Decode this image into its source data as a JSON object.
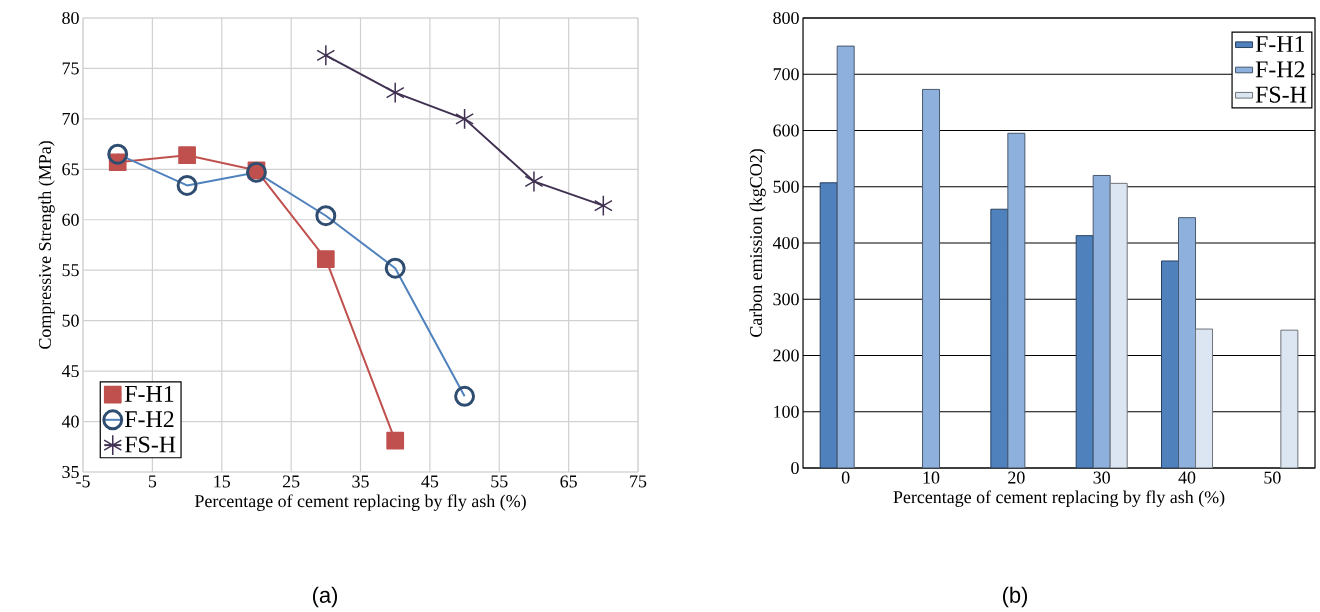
{
  "chart_data": [
    {
      "type": "line",
      "xlabel": "Percentage of cement replacing by fly ash (%)",
      "ylabel": "Compressive Strength (MPa)",
      "xlim": [
        -5,
        75
      ],
      "xticks": [
        -5,
        5,
        15,
        25,
        35,
        45,
        55,
        65,
        75
      ],
      "ylim": [
        35,
        80
      ],
      "yticks": [
        35,
        40,
        45,
        50,
        55,
        60,
        65,
        70,
        75,
        80
      ],
      "grid": true,
      "legend": "bottom left",
      "annotations": [
        "(a)"
      ],
      "series": [
        {
          "name": "F-H1",
          "color": "#c0504d",
          "marker": "square",
          "x": [
            0,
            10,
            20,
            30,
            40
          ],
          "values": [
            65.7,
            66.4,
            64.9,
            56.1,
            38.1
          ]
        },
        {
          "name": "F-H2",
          "color": "#4f81bd",
          "marker": "circle",
          "x": [
            0,
            10,
            20,
            30,
            40,
            50
          ],
          "values": [
            66.5,
            63.4,
            64.7,
            60.4,
            55.2,
            42.5
          ]
        },
        {
          "name": "FS-H",
          "color": "#403152",
          "marker": "cross",
          "x": [
            30,
            40,
            50,
            60,
            70
          ],
          "values": [
            76.3,
            72.6,
            70.0,
            63.8,
            61.4
          ]
        }
      ]
    },
    {
      "type": "bar",
      "xlabel": "Percentage of cement replacing by fly ash (%)",
      "ylabel": "Carbon emission (kgCO2)",
      "categories": [
        "0",
        "10",
        "20",
        "30",
        "40",
        "50"
      ],
      "ylim": [
        0,
        800
      ],
      "yticks": [
        0,
        100,
        200,
        300,
        400,
        500,
        600,
        700,
        800
      ],
      "grid": "y",
      "legend": "top right",
      "annotations": [
        "(b)"
      ],
      "series": [
        {
          "name": "F-H1",
          "color": "#4f81bd",
          "values": [
            507,
            null,
            460,
            413,
            368,
            null
          ]
        },
        {
          "name": "F-H2",
          "color": "#8eb0dc",
          "values": [
            750,
            673,
            595,
            520,
            445,
            null
          ]
        },
        {
          "name": "FS-H",
          "color": "#dce6f2",
          "values": [
            null,
            null,
            null,
            506,
            247,
            245
          ]
        }
      ]
    }
  ]
}
